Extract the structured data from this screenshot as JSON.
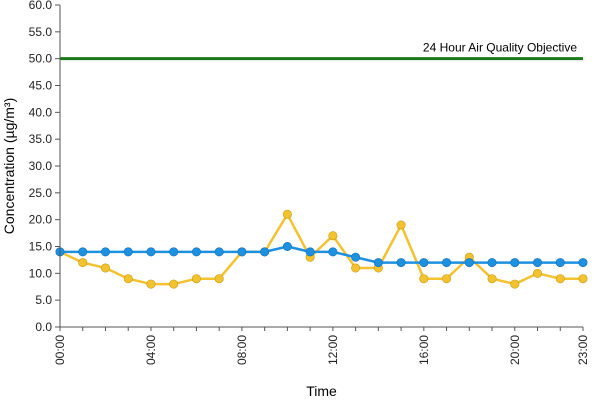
{
  "chart_data": {
    "type": "line",
    "xlabel": "Time",
    "ylabel": "Concentration (µg/m³)",
    "ylim": [
      0,
      60
    ],
    "yticks": [
      "0.0",
      "5.0",
      "10.0",
      "15.0",
      "20.0",
      "25.0",
      "30.0",
      "35.0",
      "40.0",
      "45.0",
      "50.0",
      "55.0",
      "60.0"
    ],
    "xlim": [
      0,
      23
    ],
    "xticks": [
      {
        "x": 0,
        "label": "00:00"
      },
      {
        "x": 4,
        "label": "04:00"
      },
      {
        "x": 8,
        "label": "08:00"
      },
      {
        "x": 12,
        "label": "12:00"
      },
      {
        "x": 16,
        "label": "16:00"
      },
      {
        "x": 20,
        "label": "20:00"
      },
      {
        "x": 23,
        "label": "23:00"
      }
    ],
    "grid": false,
    "objective": {
      "label": "24 Hour Air Quality Objective",
      "value": 50,
      "color": "#1a7a1a"
    },
    "series": [
      {
        "color": "#f2c230",
        "x": [
          0,
          1,
          2,
          3,
          4,
          5,
          6,
          7,
          8,
          9,
          10,
          11,
          12,
          13,
          14,
          15,
          16,
          17,
          18,
          19,
          20,
          21,
          22,
          23
        ],
        "values": [
          14,
          12,
          11,
          9,
          8,
          8,
          9,
          9,
          14,
          14,
          21,
          13,
          17,
          11,
          11,
          19,
          9,
          9,
          13,
          9,
          8,
          10,
          9,
          9
        ]
      },
      {
        "color": "#1e90e0",
        "x": [
          0,
          1,
          2,
          3,
          4,
          5,
          6,
          7,
          8,
          9,
          10,
          11,
          12,
          13,
          14,
          15,
          16,
          17,
          18,
          19,
          20,
          21,
          22,
          23
        ],
        "values": [
          14,
          14,
          14,
          14,
          14,
          14,
          14,
          14,
          14,
          14,
          15,
          14,
          14,
          13,
          12,
          12,
          12,
          12,
          12,
          12,
          12,
          12,
          12,
          12
        ]
      }
    ]
  }
}
